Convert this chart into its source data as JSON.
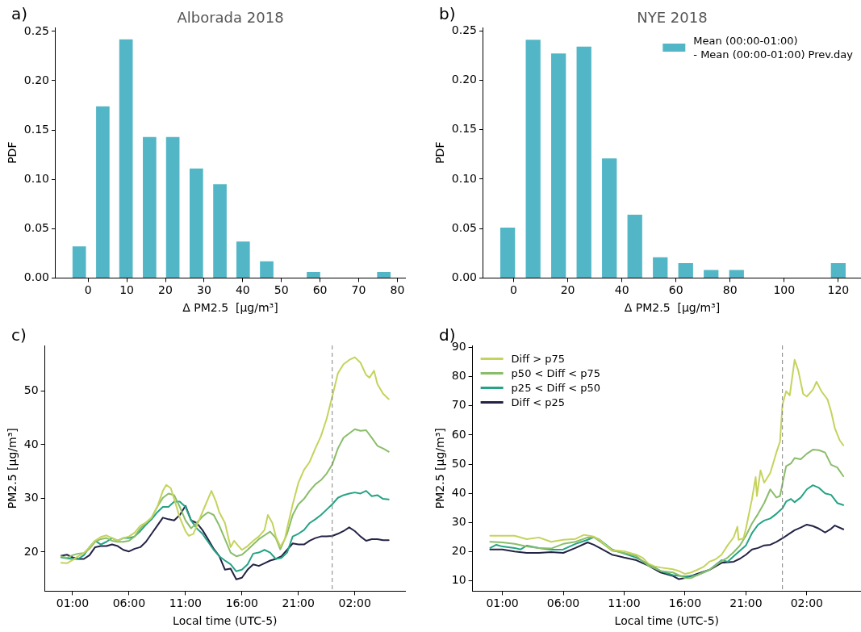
{
  "chart_data": [
    {
      "type": "bar",
      "title": "Alborada 2018",
      "xlabel": "Δ PM2.5  [μg/m³]",
      "ylabel": "PDF",
      "annotations": [
        "a)"
      ],
      "x": [
        -2.3,
        3.8,
        9.8,
        15.9,
        21.9,
        28.0,
        34.1,
        40.1,
        46.2,
        58.3,
        76.5
      ],
      "values": [
        0.032,
        0.174,
        0.242,
        0.143,
        0.143,
        0.111,
        0.095,
        0.037,
        0.017,
        0.006,
        0.006
      ],
      "color": "#52b6c6",
      "xlim": [
        -8.4,
        82
      ],
      "xticks": [
        0,
        10,
        20,
        30,
        40,
        50,
        60,
        70,
        80
      ],
      "ylim": [
        0,
        0.254
      ],
      "yticks": [
        {
          "value": 0,
          "label": "0.00"
        },
        {
          "value": 0.05,
          "label": "0.05"
        },
        {
          "value": 0.1,
          "label": "0.10"
        },
        {
          "value": 0.15,
          "label": "0.15"
        },
        {
          "value": 0.2,
          "label": "0.20"
        },
        {
          "value": 0.25,
          "label": "0.25"
        }
      ]
    },
    {
      "type": "bar",
      "title": "NYE 2018",
      "xlabel": "Δ PM2.5  [μg/m³]",
      "ylabel": "PDF",
      "annotations": [
        "b)"
      ],
      "legend": "top right",
      "x": [
        -2.2,
        7.2,
        16.6,
        26.0,
        35.4,
        44.8,
        54.2,
        63.6,
        73.0,
        82.4,
        120.0
      ],
      "series": [
        {
          "name": "Mean (00:00-01:00)\n- Mean (00:00-01:00) Prev.day",
          "color": "#52b6c6",
          "values": [
            0.051,
            0.241,
            0.227,
            0.234,
            0.121,
            0.064,
            0.021,
            0.015,
            0.008,
            0.008,
            0.015
          ]
        }
      ],
      "xlim": [
        -11.2,
        128.4
      ],
      "xticks": [
        0,
        20,
        40,
        60,
        80,
        100,
        120
      ],
      "ylim": [
        0,
        0.2534
      ],
      "yticks": [
        {
          "value": 0,
          "label": "0.00"
        },
        {
          "value": 0.05,
          "label": "0.05"
        },
        {
          "value": 0.1,
          "label": "0.10"
        },
        {
          "value": 0.15,
          "label": "0.15"
        },
        {
          "value": 0.2,
          "label": "0.20"
        },
        {
          "value": 0.25,
          "label": "0.25"
        }
      ]
    },
    {
      "type": "line",
      "xlabel": "Local time (UTC-5)",
      "ylabel": "PM2.5 [μg/m³]",
      "annotations": [
        "c)"
      ],
      "xlim": [
        "2018-11-29T22:33",
        "2018-12-01T06:27"
      ],
      "xticks": [
        {
          "value": "2018-11-30T01:00",
          "label": "01:00"
        },
        {
          "value": "2018-11-30T06:00",
          "label": "06:00"
        },
        {
          "value": "2018-11-30T11:00",
          "label": "11:00"
        },
        {
          "value": "2018-11-30T16:00",
          "label": "16:00"
        },
        {
          "value": "2018-11-30T21:00",
          "label": "21:00"
        },
        {
          "value": "2018-12-01T02:00",
          "label": "02:00"
        }
      ],
      "ylim": [
        12.7,
        58.5
      ],
      "yticks": [
        20,
        30,
        40,
        50
      ],
      "ref_lines": [
        {
          "axis": "x",
          "value": "2018-12-01T00:00",
          "color": "#808080",
          "line_style": "dashed"
        }
      ],
      "x": [
        "2018-11-30T00:00",
        "2018-11-30T00:30",
        "2018-11-30T01:00",
        "2018-11-30T01:30",
        "2018-11-30T02:00",
        "2018-11-30T02:30",
        "2018-11-30T03:00",
        "2018-11-30T03:30",
        "2018-11-30T04:00",
        "2018-11-30T04:30",
        "2018-11-30T05:00",
        "2018-11-30T05:30",
        "2018-11-30T06:00",
        "2018-11-30T06:30",
        "2018-11-30T07:00",
        "2018-11-30T07:30",
        "2018-11-30T08:00",
        "2018-11-30T08:30",
        "2018-11-30T09:00",
        "2018-11-30T09:30",
        "2018-11-30T10:00",
        "2018-11-30T10:30",
        "2018-11-30T11:00",
        "2018-11-30T11:30",
        "2018-11-30T12:00",
        "2018-11-30T12:30",
        "2018-11-30T13:00",
        "2018-11-30T13:30",
        "2018-11-30T14:00",
        "2018-11-30T14:30",
        "2018-11-30T15:00",
        "2018-11-30T15:30",
        "2018-11-30T16:00",
        "2018-11-30T16:30",
        "2018-11-30T17:00",
        "2018-11-30T17:30",
        "2018-11-30T18:00",
        "2018-11-30T18:30",
        "2018-11-30T19:00",
        "2018-11-30T19:30",
        "2018-11-30T20:00",
        "2018-11-30T20:30",
        "2018-11-30T21:00",
        "2018-11-30T21:30",
        "2018-11-30T22:00",
        "2018-11-30T22:30",
        "2018-11-30T23:00",
        "2018-11-30T23:30",
        "2018-12-01T00:00",
        "2018-12-01T00:30",
        "2018-12-01T01:00",
        "2018-12-01T01:30",
        "2018-12-01T02:00",
        "2018-12-01T02:30",
        "2018-12-01T03:00",
        "2018-12-01T03:30",
        "2018-12-01T04:00",
        "2018-12-01T04:30",
        "2018-12-01T05:00"
      ],
      "series": [
        {
          "color": "#c5d35c",
          "x": [
            "2018-11-30T00:00",
            "2018-11-30T00:30",
            "2018-11-30T01:00",
            "2018-11-30T01:30",
            "2018-11-30T02:00",
            "2018-11-30T02:30",
            "2018-11-30T03:00",
            "2018-11-30T03:30",
            "2018-11-30T04:00",
            "2018-11-30T04:30",
            "2018-11-30T05:00",
            "2018-11-30T05:30",
            "2018-11-30T06:00",
            "2018-11-30T06:30",
            "2018-11-30T07:00",
            "2018-11-30T07:30",
            "2018-11-30T08:00",
            "2018-11-30T08:30",
            "2018-11-30T09:00",
            "2018-11-30T09:18",
            "2018-11-30T09:42",
            "2018-11-30T10:00",
            "2018-11-30T10:30",
            "2018-11-30T11:00",
            "2018-11-30T11:18",
            "2018-11-30T11:42",
            "2018-11-30T12:00",
            "2018-11-30T12:30",
            "2018-11-30T13:00",
            "2018-11-30T13:18",
            "2018-11-30T13:42",
            "2018-11-30T14:00",
            "2018-11-30T14:30",
            "2018-11-30T15:00",
            "2018-11-30T15:18",
            "2018-11-30T15:42",
            "2018-11-30T16:00",
            "2018-11-30T16:30",
            "2018-11-30T17:00",
            "2018-11-30T17:30",
            "2018-11-30T18:00",
            "2018-11-30T18:18",
            "2018-11-30T18:42",
            "2018-11-30T19:00",
            "2018-11-30T19:24",
            "2018-11-30T19:48",
            "2018-11-30T20:00",
            "2018-11-30T20:30",
            "2018-11-30T21:00",
            "2018-11-30T21:30",
            "2018-11-30T22:00",
            "2018-11-30T22:30",
            "2018-11-30T23:00",
            "2018-11-30T23:30",
            "2018-12-01T00:00",
            "2018-12-01T00:30",
            "2018-12-01T01:00",
            "2018-12-01T01:30",
            "2018-12-01T02:00",
            "2018-12-01T02:30",
            "2018-12-01T03:00",
            "2018-12-01T03:18",
            "2018-12-01T03:42",
            "2018-12-01T04:00",
            "2018-12-01T04:30",
            "2018-12-01T05:00"
          ],
          "values": [
            18.0,
            17.9,
            18.5,
            19.2,
            19.8,
            20.9,
            22.1,
            22.8,
            23.1,
            22.6,
            22.1,
            22.6,
            22.9,
            23.6,
            24.9,
            25.5,
            26.4,
            28.4,
            31.4,
            32.5,
            31.9,
            29.9,
            26.4,
            23.9,
            23.0,
            23.4,
            24.9,
            27.4,
            29.9,
            31.4,
            29.4,
            27.4,
            25.4,
            20.9,
            22.1,
            21.1,
            20.4,
            21.1,
            22.1,
            22.9,
            24.1,
            26.9,
            25.4,
            22.9,
            21.0,
            22.4,
            24.4,
            28.9,
            32.9,
            35.3,
            36.8,
            39.3,
            41.6,
            44.8,
            49.0,
            53.3,
            55.0,
            55.8,
            56.3,
            55.3,
            53.0,
            52.5,
            53.8,
            51.3,
            49.5,
            48.5
          ]
        },
        {
          "color": "#8abd6a",
          "x": [
            "2018-11-30T00:00",
            "2018-11-30T00:30",
            "2018-11-30T01:00",
            "2018-11-30T01:30",
            "2018-11-30T02:00",
            "2018-11-30T02:30",
            "2018-11-30T03:00",
            "2018-11-30T03:30",
            "2018-11-30T04:00",
            "2018-11-30T04:30",
            "2018-11-30T05:00",
            "2018-11-30T05:30",
            "2018-11-30T06:00",
            "2018-11-30T06:30",
            "2018-11-30T07:00",
            "2018-11-30T07:30",
            "2018-11-30T08:00",
            "2018-11-30T08:30",
            "2018-11-30T09:00",
            "2018-11-30T09:30",
            "2018-11-30T10:00",
            "2018-11-30T10:30",
            "2018-11-30T11:00",
            "2018-11-30T11:30",
            "2018-11-30T12:00",
            "2018-11-30T12:30",
            "2018-11-30T13:00",
            "2018-11-30T13:30",
            "2018-11-30T14:00",
            "2018-11-30T14:30",
            "2018-11-30T15:00",
            "2018-11-30T15:30",
            "2018-11-30T16:00",
            "2018-11-30T16:30",
            "2018-11-30T17:00",
            "2018-11-30T17:30",
            "2018-11-30T18:00",
            "2018-11-30T18:30",
            "2018-11-30T19:00",
            "2018-11-30T19:24",
            "2018-11-30T20:00",
            "2018-11-30T20:30",
            "2018-11-30T21:00",
            "2018-11-30T21:30",
            "2018-11-30T22:00",
            "2018-11-30T22:30",
            "2018-11-30T23:00",
            "2018-11-30T23:30",
            "2018-12-01T00:00",
            "2018-12-01T00:30",
            "2018-12-01T01:00",
            "2018-12-01T01:30",
            "2018-12-01T02:00",
            "2018-12-01T02:30",
            "2018-12-01T03:00",
            "2018-12-01T03:30",
            "2018-12-01T04:00",
            "2018-12-01T04:30",
            "2018-12-01T05:00"
          ],
          "values": [
            19.2,
            18.9,
            19.4,
            19.7,
            19.8,
            20.6,
            21.9,
            22.4,
            22.6,
            22.1,
            21.9,
            21.9,
            22.1,
            22.9,
            24.4,
            25.4,
            26.4,
            28.4,
            30.1,
            30.9,
            30.6,
            28.4,
            25.9,
            24.4,
            25.4,
            26.6,
            27.4,
            26.9,
            24.9,
            22.4,
            19.9,
            19.2,
            19.5,
            20.4,
            21.4,
            22.4,
            23.1,
            23.8,
            22.6,
            20.5,
            23.4,
            26.9,
            28.9,
            29.9,
            31.4,
            32.6,
            33.4,
            34.6,
            36.3,
            39.3,
            41.3,
            42.1,
            42.9,
            42.6,
            42.7,
            41.3,
            39.8,
            39.3,
            38.7
          ]
        },
        {
          "color": "#25a384",
          "values": [
            19.0,
            18.8,
            18.7,
            18.7,
            19.4,
            20.9,
            22.1,
            21.4,
            21.9,
            22.6,
            22.1,
            22.6,
            22.6,
            22.9,
            23.9,
            25.1,
            26.1,
            27.4,
            28.4,
            28.4,
            29.4,
            29.4,
            28.4,
            25.9,
            24.4,
            23.4,
            21.9,
            20.4,
            19.2,
            18.4,
            17.7,
            16.4,
            16.7,
            17.7,
            19.7,
            19.9,
            20.4,
            19.9,
            18.7,
            18.9,
            19.9,
            22.9,
            23.4,
            24.1,
            25.4,
            26.1,
            26.9,
            27.9,
            28.9,
            30.1,
            30.6,
            30.9,
            31.1,
            30.9,
            31.4,
            30.4,
            30.6,
            29.9,
            29.8
          ]
        },
        {
          "color": "#232345",
          "values": [
            19.3,
            19.5,
            19.0,
            18.7,
            18.7,
            19.4,
            20.9,
            21.1,
            21.1,
            21.4,
            21.1,
            20.4,
            20.1,
            20.6,
            20.9,
            21.9,
            23.4,
            24.9,
            26.4,
            26.1,
            25.9,
            26.9,
            28.6,
            25.9,
            25.4,
            24.1,
            22.4,
            20.6,
            19.2,
            16.7,
            16.9,
            14.9,
            15.2,
            16.7,
            17.7,
            17.4,
            17.9,
            18.4,
            18.7,
            19.2,
            20.4,
            21.6,
            21.4,
            21.4,
            22.1,
            22.6,
            22.9,
            22.9,
            23.0,
            23.4,
            23.9,
            24.6,
            23.9,
            22.9,
            22.1,
            22.4,
            22.4,
            22.2,
            22.2
          ]
        }
      ]
    },
    {
      "type": "line",
      "xlabel": "Local time (UTC-5)",
      "ylabel": "PM2.5 [μg/m³]",
      "annotations": [
        "d)"
      ],
      "legend": "top left",
      "xlim": [
        "2018-12-30T22:33",
        "2019-01-01T06:27"
      ],
      "xticks": [
        {
          "value": "2018-12-31T01:00",
          "label": "01:00"
        },
        {
          "value": "2018-12-31T06:00",
          "label": "06:00"
        },
        {
          "value": "2018-12-31T11:00",
          "label": "11:00"
        },
        {
          "value": "2018-12-31T16:00",
          "label": "16:00"
        },
        {
          "value": "2018-12-31T21:00",
          "label": "21:00"
        },
        {
          "value": "2019-01-01T02:00",
          "label": "02:00"
        }
      ],
      "ylim": [
        6.5,
        90.7
      ],
      "yticks": [
        10,
        20,
        30,
        40,
        50,
        60,
        70,
        80,
        90
      ],
      "ref_lines": [
        {
          "axis": "x",
          "value": "2019-01-01T00:00",
          "color": "#808080",
          "line_style": "dashed"
        }
      ],
      "series": [
        {
          "name": "Diff > p75",
          "color": "#c5d35c",
          "x": [
            "2018-12-31T00:00",
            "2018-12-31T01:00",
            "2018-12-31T02:00",
            "2018-12-31T03:00",
            "2018-12-31T04:00",
            "2018-12-31T05:00",
            "2018-12-31T06:00",
            "2018-12-31T07:00",
            "2018-12-31T07:42",
            "2018-12-31T08:30",
            "2018-12-31T09:00",
            "2018-12-31T09:30",
            "2018-12-31T10:00",
            "2018-12-31T11:00",
            "2018-12-31T12:00",
            "2018-12-31T12:30",
            "2018-12-31T13:00",
            "2018-12-31T13:30",
            "2018-12-31T14:00",
            "2018-12-31T15:00",
            "2018-12-31T15:30",
            "2018-12-31T16:00",
            "2018-12-31T16:30",
            "2018-12-31T17:00",
            "2018-12-31T17:30",
            "2018-12-31T18:00",
            "2018-12-31T18:30",
            "2018-12-31T19:00",
            "2018-12-31T19:30",
            "2018-12-31T20:00",
            "2018-12-31T20:18",
            "2018-12-31T20:24",
            "2018-12-31T20:48",
            "2018-12-31T21:00",
            "2018-12-31T21:30",
            "2018-12-31T21:48",
            "2018-12-31T21:54",
            "2018-12-31T22:12",
            "2018-12-31T22:30",
            "2018-12-31T23:00",
            "2018-12-31T23:30",
            "2018-12-31T23:48",
            "2019-01-01T00:00",
            "2019-01-01T00:18",
            "2019-01-01T00:36",
            "2019-01-01T01:00",
            "2019-01-01T01:18",
            "2019-01-01T01:42",
            "2019-01-01T02:00",
            "2019-01-01T02:30",
            "2019-01-01T02:48",
            "2019-01-01T03:12",
            "2019-01-01T03:42",
            "2019-01-01T04:00",
            "2019-01-01T04:18",
            "2019-01-01T04:42",
            "2019-01-01T05:00"
          ],
          "values": [
            25.5,
            25.5,
            25.5,
            24.3,
            24.9,
            23.4,
            24.1,
            24.4,
            25.8,
            25.2,
            24.1,
            22.2,
            20.6,
            20.2,
            19.0,
            18.0,
            15.9,
            15.0,
            14.6,
            14.0,
            13.4,
            12.4,
            12.9,
            13.8,
            14.8,
            16.6,
            17.4,
            19.0,
            22.2,
            25.0,
            28.6,
            24.1,
            24.6,
            27.9,
            38.1,
            45.6,
            39.1,
            47.9,
            43.7,
            47.0,
            54.0,
            57.8,
            70.4,
            75.0,
            73.6,
            85.8,
            82.1,
            74.1,
            73.2,
            75.5,
            78.3,
            75.0,
            72.2,
            68.0,
            62.4,
            58.2,
            56.5
          ]
        },
        {
          "name": "p50 < Diff < p75",
          "color": "#8abd6a",
          "x": [
            "2018-12-31T00:00",
            "2018-12-31T01:00",
            "2018-12-31T02:00",
            "2018-12-31T03:00",
            "2018-12-31T04:00",
            "2018-12-31T05:00",
            "2018-12-31T06:00",
            "2018-12-31T07:00",
            "2018-12-31T08:00",
            "2018-12-31T08:30",
            "2018-12-31T09:00",
            "2018-12-31T10:00",
            "2018-12-31T11:00",
            "2018-12-31T12:00",
            "2018-12-31T13:00",
            "2018-12-31T14:00",
            "2018-12-31T15:00",
            "2018-12-31T16:00",
            "2018-12-31T16:30",
            "2018-12-31T17:00",
            "2018-12-31T18:00",
            "2018-12-31T19:00",
            "2018-12-31T19:30",
            "2018-12-31T20:00",
            "2018-12-31T20:30",
            "2018-12-31T21:00",
            "2018-12-31T21:30",
            "2018-12-31T22:00",
            "2018-12-31T22:30",
            "2018-12-31T23:00",
            "2018-12-31T23:30",
            "2018-12-31T23:48",
            "2019-01-01T00:00",
            "2019-01-01T00:18",
            "2019-01-01T00:42",
            "2019-01-01T01:00",
            "2019-01-01T01:30",
            "2019-01-01T02:00",
            "2019-01-01T02:30",
            "2019-01-01T03:00",
            "2019-01-01T03:30",
            "2019-01-01T04:00",
            "2019-01-01T04:30",
            "2019-01-01T05:00"
          ],
          "values": [
            23.4,
            23.2,
            22.7,
            21.8,
            21.3,
            21.1,
            22.7,
            23.4,
            24.9,
            25.0,
            23.6,
            20.4,
            19.6,
            18.5,
            15.2,
            13.4,
            12.9,
            11.0,
            11.0,
            12.0,
            13.8,
            16.8,
            18.0,
            19.9,
            22.1,
            25.5,
            29.7,
            33.0,
            36.7,
            41.4,
            38.6,
            39.1,
            43.3,
            49.3,
            50.3,
            52.1,
            51.7,
            53.6,
            55.0,
            54.8,
            54.0,
            49.8,
            48.9,
            45.9
          ]
        },
        {
          "name": "p25 < Diff < p50",
          "color": "#25a384",
          "x": [
            "2018-12-31T00:00",
            "2018-12-31T00:30",
            "2018-12-31T01:00",
            "2018-12-31T02:00",
            "2018-12-31T02:30",
            "2018-12-31T03:00",
            "2018-12-31T04:00",
            "2018-12-31T05:00",
            "2018-12-31T06:00",
            "2018-12-31T07:00",
            "2018-12-31T08:00",
            "2018-12-31T08:30",
            "2018-12-31T09:00",
            "2018-12-31T10:00",
            "2018-12-31T11:00",
            "2018-12-31T12:00",
            "2018-12-31T13:00",
            "2018-12-31T14:00",
            "2018-12-31T15:00",
            "2018-12-31T16:00",
            "2018-12-31T17:00",
            "2018-12-31T18:00",
            "2018-12-31T19:00",
            "2018-12-31T19:30",
            "2018-12-31T20:00",
            "2018-12-31T21:00",
            "2018-12-31T21:30",
            "2018-12-31T22:00",
            "2018-12-31T22:30",
            "2018-12-31T23:00",
            "2018-12-31T23:30",
            "2019-01-01T00:00",
            "2019-01-01T00:18",
            "2019-01-01T00:42",
            "2019-01-01T01:00",
            "2019-01-01T01:30",
            "2019-01-01T02:00",
            "2019-01-01T02:30",
            "2019-01-01T03:00",
            "2019-01-01T03:30",
            "2019-01-01T04:00",
            "2019-01-01T04:30",
            "2019-01-01T05:00"
          ],
          "values": [
            21.3,
            22.4,
            21.8,
            21.3,
            20.8,
            22.1,
            21.3,
            20.7,
            20.8,
            22.7,
            24.1,
            25.0,
            24.1,
            20.8,
            19.4,
            18.0,
            15.7,
            13.4,
            12.0,
            11.5,
            12.0,
            13.8,
            17.1,
            16.6,
            18.5,
            22.2,
            26.4,
            29.3,
            30.7,
            31.4,
            33.0,
            34.9,
            37.2,
            38.1,
            37.0,
            38.6,
            41.4,
            42.8,
            41.9,
            40.0,
            39.5,
            36.7,
            36.0
          ]
        },
        {
          "name": "Diff < p25",
          "color": "#232345",
          "x": [
            "2018-12-31T00:00",
            "2018-12-31T01:00",
            "2018-12-31T02:00",
            "2018-12-31T03:00",
            "2018-12-31T04:00",
            "2018-12-31T05:00",
            "2018-12-31T06:00",
            "2018-12-31T07:00",
            "2018-12-31T08:00",
            "2018-12-31T08:30",
            "2018-12-31T09:00",
            "2018-12-31T10:00",
            "2018-12-31T11:00",
            "2018-12-31T12:00",
            "2018-12-31T13:00",
            "2018-12-31T14:00",
            "2018-12-31T15:00",
            "2018-12-31T15:30",
            "2018-12-31T16:00",
            "2018-12-31T17:00",
            "2018-12-31T18:00",
            "2018-12-31T19:00",
            "2018-12-31T20:00",
            "2018-12-31T20:30",
            "2018-12-31T21:00",
            "2018-12-31T21:30",
            "2018-12-31T22:00",
            "2018-12-31T22:30",
            "2018-12-31T23:00",
            "2018-12-31T23:30",
            "2019-01-01T00:00",
            "2019-01-01T00:30",
            "2019-01-01T01:00",
            "2019-01-01T01:30",
            "2019-01-01T02:00",
            "2019-01-01T02:30",
            "2019-01-01T03:00",
            "2019-01-01T03:30",
            "2019-01-01T04:00",
            "2019-01-01T04:18",
            "2019-01-01T05:00"
          ],
          "values": [
            20.8,
            20.8,
            20.1,
            19.6,
            19.6,
            19.9,
            19.6,
            21.3,
            23.2,
            22.4,
            21.3,
            19.0,
            18.0,
            17.1,
            15.2,
            12.9,
            11.7,
            10.6,
            11.0,
            12.4,
            13.8,
            16.2,
            16.6,
            17.6,
            19.0,
            20.8,
            21.3,
            22.2,
            22.4,
            23.4,
            24.6,
            26.0,
            27.4,
            28.3,
            29.3,
            28.8,
            27.9,
            26.6,
            27.9,
            29.0,
            27.7
          ]
        }
      ]
    }
  ]
}
